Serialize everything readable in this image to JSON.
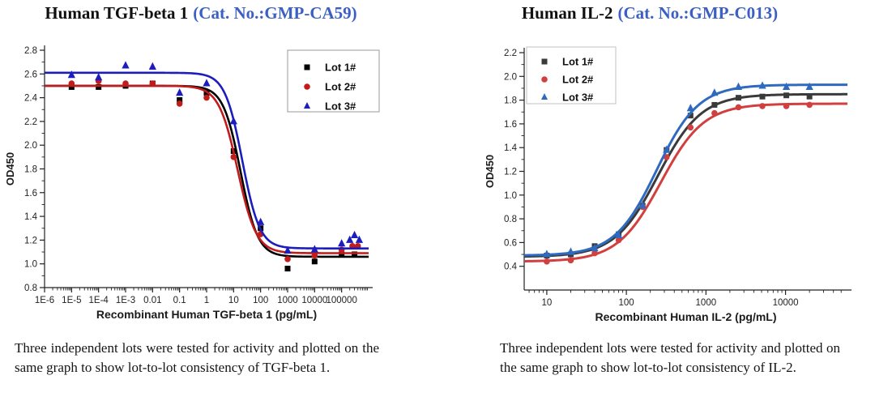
{
  "colors": {
    "catalog_blue": "#3b5fc4"
  },
  "figures": [
    {
      "title_product": "Human TGF-beta 1",
      "title_catalog": "(Cat. No.:GMP-CA59)",
      "caption": "Three independent lots were tested for activity and plotted on the same graph to show lot-to-lot consistency of TGF-beta 1."
    },
    {
      "title_product": "Human IL-2",
      "title_catalog": "(Cat. No.:GMP-C013)",
      "caption": "Three independent lots were tested for activity and plotted on the same graph to show lot-to-lot consistency of IL-2."
    }
  ],
  "chart_data": [
    {
      "type": "scatter",
      "title": "Human TGF-beta 1 (Cat. No.:GMP-CA59)",
      "xlabel": "Recombinant Human TGF-beta 1 (pg/mL)",
      "ylabel": "OD450",
      "x_scale": "log",
      "xlim": [
        1e-06,
        1000000.0
      ],
      "ylim": [
        0.8,
        2.8
      ],
      "grid": false,
      "legend_position": "top-right",
      "x_ticks": [
        1e-06,
        1e-05,
        0.0001,
        0.001,
        0.01,
        0.1,
        1,
        10,
        100,
        1000,
        10000,
        100000
      ],
      "x_tick_labels": [
        "1E-6",
        "1E-5",
        "1E-4",
        "1E-3",
        "0.01",
        "0.1",
        "1",
        "10",
        "100",
        "1000",
        "10000",
        "100000"
      ],
      "y_ticks": [
        0.8,
        1.0,
        1.2,
        1.4,
        1.6,
        1.8,
        2.0,
        2.2,
        2.4,
        2.6,
        2.8
      ],
      "y_tick_labels": [
        "0.8",
        "1.0",
        "1.2",
        "1.4",
        "1.6",
        "1.8",
        "2.0",
        "2.2",
        "2.4",
        "2.6",
        "2.8"
      ],
      "series": [
        {
          "name": "Lot 1#",
          "marker": "square",
          "color": "#000000",
          "marker_size": 7,
          "fit": {
            "top": 2.5,
            "bottom": 1.06,
            "ec50": 18,
            "hill": 1.35
          },
          "points": [
            [
              1e-05,
              2.49
            ],
            [
              0.0001,
              2.49
            ],
            [
              0.001,
              2.5
            ],
            [
              0.01,
              2.52
            ],
            [
              0.1,
              2.38
            ],
            [
              1,
              2.44
            ],
            [
              10,
              1.95
            ],
            [
              100,
              1.3
            ],
            [
              1000,
              0.96
            ],
            [
              10000,
              1.02
            ],
            [
              100000,
              1.08
            ],
            [
              300000,
              1.08
            ]
          ]
        },
        {
          "name": "Lot 2#",
          "marker": "circle",
          "color": "#c11b1b",
          "marker_size": 7,
          "fit": {
            "top": 2.5,
            "bottom": 1.09,
            "ec50": 14,
            "hill": 1.25
          },
          "points": [
            [
              1e-05,
              2.52
            ],
            [
              0.0001,
              2.54
            ],
            [
              0.001,
              2.52
            ],
            [
              0.01,
              2.52
            ],
            [
              0.1,
              2.35
            ],
            [
              1,
              2.4
            ],
            [
              10,
              1.9
            ],
            [
              100,
              1.25
            ],
            [
              1000,
              1.04
            ],
            [
              10000,
              1.07
            ],
            [
              100000,
              1.12
            ],
            [
              250000,
              1.15
            ],
            [
              400000,
              1.15
            ]
          ]
        },
        {
          "name": "Lot 3#",
          "marker": "triangle",
          "color": "#1d1dbe",
          "marker_size": 8,
          "fit": {
            "top": 2.61,
            "bottom": 1.13,
            "ec50": 21,
            "hill": 1.35
          },
          "points": [
            [
              1e-05,
              2.59
            ],
            [
              0.0001,
              2.57
            ],
            [
              0.001,
              2.67
            ],
            [
              0.01,
              2.66
            ],
            [
              0.1,
              2.44
            ],
            [
              1,
              2.52
            ],
            [
              10,
              2.2
            ],
            [
              100,
              1.35
            ],
            [
              1000,
              1.11
            ],
            [
              10000,
              1.12
            ],
            [
              100000,
              1.17
            ],
            [
              200000,
              1.2
            ],
            [
              300000,
              1.24
            ],
            [
              450000,
              1.2
            ]
          ]
        }
      ]
    },
    {
      "type": "scatter",
      "title": "Human IL-2 (Cat. No.:GMP-C013)",
      "xlabel": "Recombinant Human IL-2 (pg/mL)",
      "ylabel": "OD450",
      "x_scale": "log",
      "xlim": [
        5.2,
        60000
      ],
      "ylim": [
        0.2,
        2.2
      ],
      "grid": false,
      "legend_position": "top-left",
      "x_ticks": [
        10,
        100,
        1000,
        10000
      ],
      "x_tick_labels": [
        "10",
        "100",
        "1000",
        "10000"
      ],
      "y_ticks": [
        0.4,
        0.6,
        0.8,
        1.0,
        1.2,
        1.4,
        1.6,
        1.8,
        2.0,
        2.2
      ],
      "y_tick_labels": [
        "0.4",
        "0.6",
        "0.8",
        "1.0",
        "1.2",
        "1.4",
        "1.6",
        "1.8",
        "2.0",
        "2.2"
      ],
      "series": [
        {
          "name": "Lot 1#",
          "marker": "square",
          "color": "#3a3a3a",
          "marker_size": 7,
          "fit": {
            "top": 1.85,
            "bottom": 0.48,
            "ec50": 250,
            "hill": -1.6
          },
          "points": [
            [
              10,
              0.49
            ],
            [
              20,
              0.5
            ],
            [
              40,
              0.57
            ],
            [
              80,
              0.67
            ],
            [
              160,
              0.91
            ],
            [
              320,
              1.38
            ],
            [
              640,
              1.67
            ],
            [
              1280,
              1.76
            ],
            [
              2560,
              1.82
            ],
            [
              5120,
              1.83
            ],
            [
              10240,
              1.84
            ],
            [
              20000,
              1.83
            ]
          ]
        },
        {
          "name": "Lot 2#",
          "marker": "circle",
          "color": "#d23f3f",
          "marker_size": 7,
          "fit": {
            "top": 1.77,
            "bottom": 0.44,
            "ec50": 270,
            "hill": -1.6
          },
          "points": [
            [
              10,
              0.44
            ],
            [
              20,
              0.45
            ],
            [
              40,
              0.51
            ],
            [
              80,
              0.62
            ],
            [
              160,
              0.9
            ],
            [
              320,
              1.32
            ],
            [
              640,
              1.57
            ],
            [
              1280,
              1.69
            ],
            [
              2560,
              1.74
            ],
            [
              5120,
              1.75
            ],
            [
              10240,
              1.75
            ],
            [
              20000,
              1.76
            ]
          ]
        },
        {
          "name": "Lot 3#",
          "marker": "triangle",
          "color": "#2e6bc0",
          "marker_size": 8,
          "fit": {
            "top": 1.93,
            "bottom": 0.49,
            "ec50": 240,
            "hill": -1.65
          },
          "points": [
            [
              10,
              0.5
            ],
            [
              20,
              0.52
            ],
            [
              40,
              0.55
            ],
            [
              80,
              0.66
            ],
            [
              160,
              0.91
            ],
            [
              320,
              1.38
            ],
            [
              640,
              1.73
            ],
            [
              1280,
              1.86
            ],
            [
              2560,
              1.91
            ],
            [
              5120,
              1.92
            ],
            [
              10240,
              1.91
            ],
            [
              20000,
              1.91
            ]
          ]
        }
      ]
    }
  ]
}
